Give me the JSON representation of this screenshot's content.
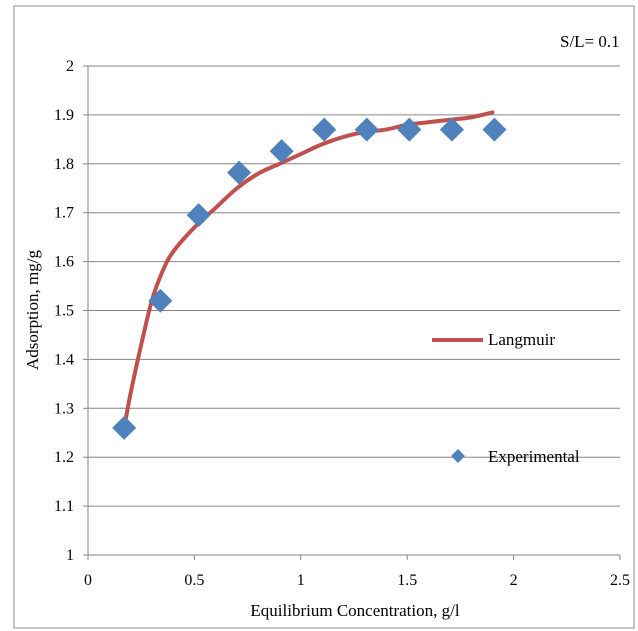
{
  "chart_data": {
    "type": "scatter",
    "title": "",
    "xlabel": "Equilibrium Concentration, g/l",
    "ylabel": "Adsorption, mg/g",
    "xlim": [
      0,
      2.5
    ],
    "ylim": [
      1,
      2
    ],
    "xticks": [
      "0",
      "0.5",
      "1",
      "1.5",
      "2",
      "2.5"
    ],
    "yticks": [
      "1",
      "1.1",
      "1.2",
      "1.3",
      "1.4",
      "1.5",
      "1.6",
      "1.7",
      "1.8",
      "1.9",
      "2"
    ],
    "grid": "horizontal",
    "annotation": "S/L= 0.1",
    "legend_position": "right",
    "series": [
      {
        "name": "Langmuir",
        "kind": "line",
        "color": "#C0504D",
        "x": [
          0.17,
          0.2,
          0.25,
          0.3,
          0.35,
          0.4,
          0.5,
          0.6,
          0.7,
          0.8,
          0.9,
          1.0,
          1.1,
          1.2,
          1.3,
          1.4,
          1.5,
          1.6,
          1.7,
          1.8,
          1.9
        ],
        "y": [
          1.26,
          1.33,
          1.43,
          1.52,
          1.58,
          1.62,
          1.67,
          1.71,
          1.75,
          1.78,
          1.8,
          1.82,
          1.84,
          1.855,
          1.865,
          1.87,
          1.88,
          1.885,
          1.89,
          1.895,
          1.905
        ]
      },
      {
        "name": "Experimental",
        "kind": "scatter",
        "color": "#4F81BD",
        "x": [
          0.17,
          0.34,
          0.52,
          0.71,
          0.91,
          1.11,
          1.31,
          1.51,
          1.71,
          1.91
        ],
        "y": [
          1.26,
          1.52,
          1.695,
          1.782,
          1.826,
          1.87,
          1.87,
          1.87,
          1.87,
          1.87
        ]
      }
    ]
  }
}
